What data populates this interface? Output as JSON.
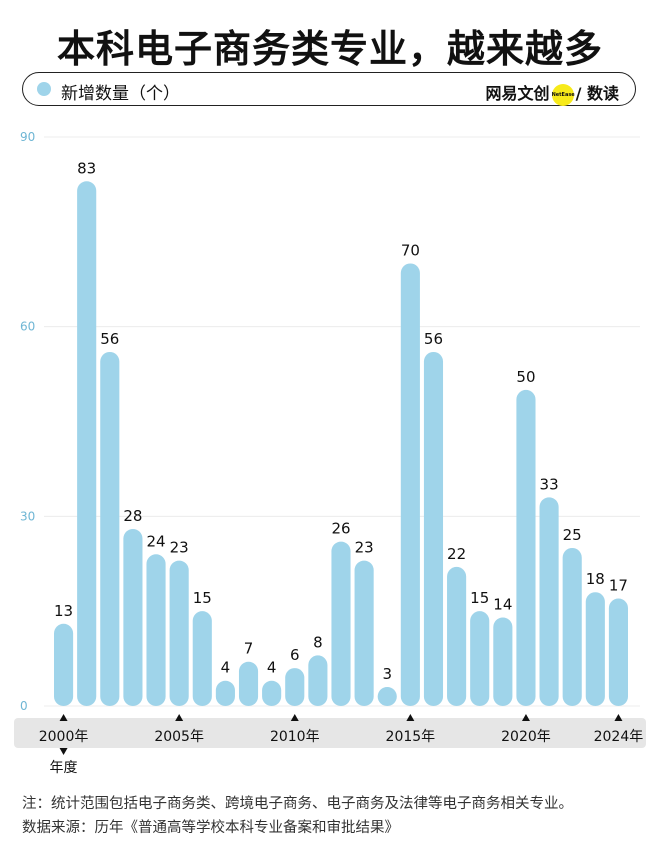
{
  "title": "本科电子商务类专业，越来越多",
  "legend": {
    "label": "新增数量（个）",
    "color": "#9fd4ea"
  },
  "brand": {
    "left": "网易文创",
    "logo_text": "NetEase",
    "right": "数读",
    "logo_color": "#f7ea1a"
  },
  "colors": {
    "bar": "#9fd4ea",
    "axis_strip": "#e6e6e6",
    "tick_text": "#6fb6d4"
  },
  "chart_data": {
    "type": "bar",
    "categories": [
      "2000",
      "2001",
      "2002",
      "2003",
      "2004",
      "2005",
      "2006",
      "2007",
      "2008",
      "2009",
      "2010",
      "2011",
      "2012",
      "2013",
      "2014",
      "2015",
      "2016",
      "2017",
      "2018",
      "2019",
      "2020",
      "2021",
      "2022",
      "2023",
      "2024"
    ],
    "values": [
      13,
      83,
      56,
      28,
      24,
      23,
      15,
      4,
      7,
      4,
      6,
      8,
      26,
      23,
      3,
      70,
      56,
      22,
      15,
      14,
      50,
      33,
      25,
      18,
      17
    ],
    "ylim": [
      0,
      90
    ],
    "yticks": [
      0,
      30,
      60,
      90
    ],
    "xtick_labels": [
      {
        "index": 0,
        "label": "2000年"
      },
      {
        "index": 5,
        "label": "2005年"
      },
      {
        "index": 10,
        "label": "2010年"
      },
      {
        "index": 15,
        "label": "2015年"
      },
      {
        "index": 20,
        "label": "2020年"
      },
      {
        "index": 24,
        "label": "2024年"
      }
    ],
    "xlabel": "年度",
    "ylabel": "新增数量（个）",
    "title": "本科电子商务类专业，越来越多"
  },
  "notes": {
    "note": "注：统计范围包括电子商务类、跨境电子商务、电子商务及法律等电子商务相关专业。",
    "source": "数据来源：历年《普通高等学校本科专业备案和审批结果》"
  }
}
